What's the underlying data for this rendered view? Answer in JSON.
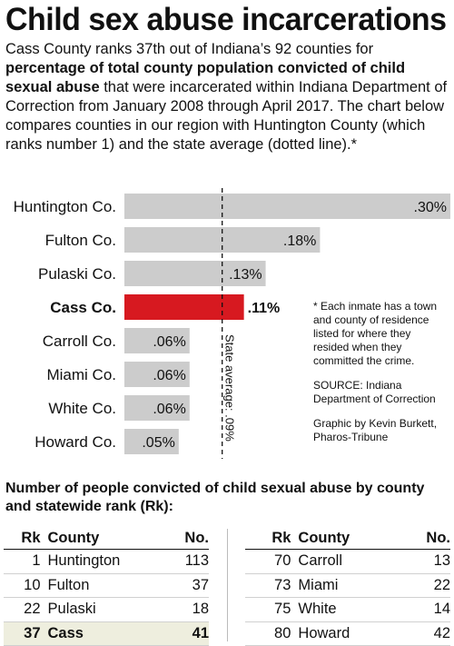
{
  "title": "Child sex abuse incarcerations",
  "intro": {
    "part1": "Cass County ranks 37th out of Indiana’s 92 counties for ",
    "bold": "percentage of total county population convicted of child sexual abuse",
    "part2": " that were incarcerated within Indiana Department of Correction from January 2008 through April 2017. The chart below compares counties in our region with Huntington County (which ranks number 1) and the state average (dotted line).*"
  },
  "chart_data": {
    "type": "bar",
    "orientation": "horizontal",
    "categories": [
      "Huntington Co.",
      "Fulton Co.",
      "Pulaski Co.",
      "Cass Co.",
      "Carroll Co.",
      "Miami Co.",
      "White Co.",
      "Howard Co."
    ],
    "values": [
      0.3,
      0.18,
      0.13,
      0.11,
      0.06,
      0.06,
      0.06,
      0.05
    ],
    "value_labels": [
      ".30%",
      ".18%",
      ".13%",
      ".11%",
      ".06%",
      ".06%",
      ".06%",
      ".05%"
    ],
    "highlight_index": 3,
    "reference_line": {
      "value": 0.09,
      "label": "State average: .09%",
      "style": "dotted"
    },
    "xlim": [
      0,
      0.3
    ],
    "colors": {
      "bar": "#cccccc",
      "highlight": "#d71920",
      "reference": "#111111"
    }
  },
  "footnote": {
    "note": "* Each inmate has a town and county of residence listed for where they resided when they committed the crime.",
    "source": "SOURCE: Indiana Department of Correction",
    "credit": "Graphic by Kevin Burkett, Pharos-Tribune"
  },
  "table": {
    "title": "Number of people convicted of child sexual abuse by county and statewide rank (Rk):",
    "headers": {
      "rk": "Rk",
      "county": "County",
      "no": "No."
    },
    "left_rows": [
      {
        "rk": "1",
        "county": "Huntington",
        "no": "113"
      },
      {
        "rk": "10",
        "county": "Fulton",
        "no": "37"
      },
      {
        "rk": "22",
        "county": "Pulaski",
        "no": "18"
      },
      {
        "rk": "37",
        "county": "Cass",
        "no": "41"
      }
    ],
    "right_rows": [
      {
        "rk": "70",
        "county": "Carroll",
        "no": "13"
      },
      {
        "rk": "73",
        "county": "Miami",
        "no": "22"
      },
      {
        "rk": "75",
        "county": "White",
        "no": "14"
      },
      {
        "rk": "80",
        "county": "Howard",
        "no": "42"
      }
    ],
    "highlight_county": "Cass",
    "highlight_color": "#eeeede"
  }
}
